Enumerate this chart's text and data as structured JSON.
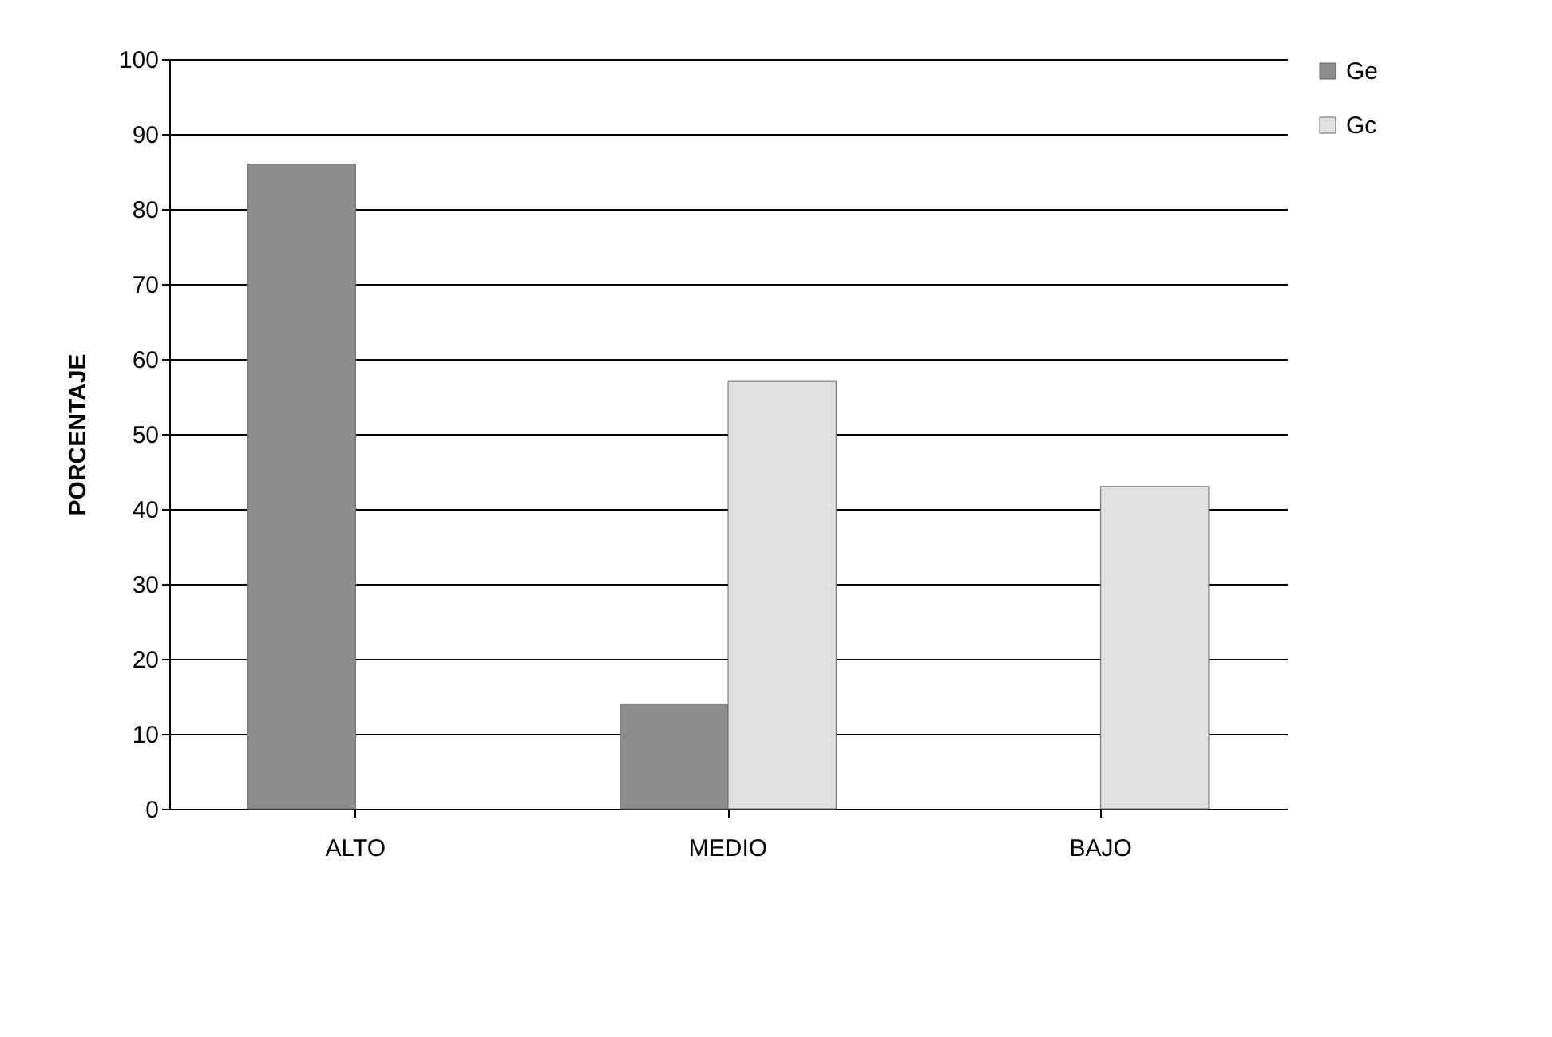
{
  "chart_data": {
    "type": "bar",
    "ylabel": "PORCENTAJE",
    "categories": [
      "ALTO",
      "MEDIO",
      "BAJO"
    ],
    "series": [
      {
        "name": "Ge",
        "color": "#8c8c8c",
        "values": [
          86,
          14,
          null
        ]
      },
      {
        "name": "Gc",
        "color": "#e0e0e0",
        "values": [
          null,
          57,
          43
        ]
      }
    ],
    "ylim": [
      0,
      100
    ],
    "yticks": [
      0,
      10,
      20,
      30,
      40,
      50,
      60,
      70,
      80,
      90,
      100
    ],
    "grid": "y",
    "legend": "right"
  }
}
